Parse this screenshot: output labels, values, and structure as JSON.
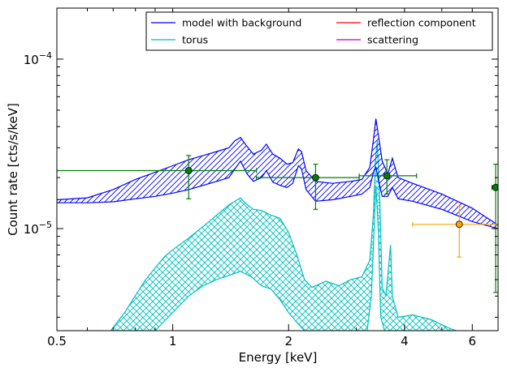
{
  "chart_data": {
    "type": "line",
    "xlabel": "Energy [keV]",
    "ylabel": "Count rate [cts/s/keV]",
    "xscale": "log",
    "yscale": "log",
    "xlim": [
      0.5,
      7.0
    ],
    "ylim": [
      2.5e-06,
      0.0002
    ],
    "x_ticks": [
      {
        "value": 0.5,
        "label": "0.5"
      },
      {
        "value": 1,
        "label": "1"
      },
      {
        "value": 2,
        "label": "2"
      },
      {
        "value": 4,
        "label": "4"
      },
      {
        "value": 6,
        "label": "6"
      }
    ],
    "y_ticks": [
      {
        "value": 1e-05,
        "mantissa": "10",
        "exponent": "−5"
      },
      {
        "value": 0.0001,
        "mantissa": "10",
        "exponent": "−4"
      }
    ],
    "legend": {
      "position": "top-right",
      "columns": 2,
      "entries": [
        {
          "label": "model with background",
          "color": "#0000ff"
        },
        {
          "label": "reflection component",
          "color": "#ff0000"
        },
        {
          "label": "torus",
          "color": "#00bfbf"
        },
        {
          "label": "scattering",
          "color": "#bf00bf"
        }
      ]
    },
    "model_band": {
      "color": "#0000ff",
      "hatch": "diagonal",
      "upper": [
        [
          0.5,
          1.48e-05
        ],
        [
          0.6,
          1.52e-05
        ],
        [
          0.7,
          1.7e-05
        ],
        [
          0.8,
          1.95e-05
        ],
        [
          0.9,
          2.15e-05
        ],
        [
          1.0,
          2.35e-05
        ],
        [
          1.1,
          2.55e-05
        ],
        [
          1.2,
          2.7e-05
        ],
        [
          1.3,
          2.85e-05
        ],
        [
          1.4,
          3e-05
        ],
        [
          1.45,
          3.3e-05
        ],
        [
          1.5,
          3.45e-05
        ],
        [
          1.56,
          3.05e-05
        ],
        [
          1.62,
          2.75e-05
        ],
        [
          1.7,
          2.9e-05
        ],
        [
          1.75,
          3.15e-05
        ],
        [
          1.82,
          2.75e-05
        ],
        [
          1.9,
          2.6e-05
        ],
        [
          1.98,
          2.4e-05
        ],
        [
          2.05,
          2.45e-05
        ],
        [
          2.12,
          2.95e-05
        ],
        [
          2.16,
          2.85e-05
        ],
        [
          2.22,
          2.2e-05
        ],
        [
          2.35,
          1.9e-05
        ],
        [
          2.6,
          1.85e-05
        ],
        [
          2.9,
          1.9e-05
        ],
        [
          3.1,
          1.95e-05
        ],
        [
          3.25,
          2.3e-05
        ],
        [
          3.33,
          3.5e-05
        ],
        [
          3.37,
          4.45e-05
        ],
        [
          3.42,
          3.6e-05
        ],
        [
          3.5,
          2.5e-05
        ],
        [
          3.62,
          2.1e-05
        ],
        [
          3.72,
          2.6e-05
        ],
        [
          3.85,
          2e-05
        ],
        [
          4.2,
          1.85e-05
        ],
        [
          5.0,
          1.6e-05
        ],
        [
          6.0,
          1.32e-05
        ],
        [
          7.0,
          1.05e-05
        ]
      ],
      "lower": [
        [
          0.5,
          1.42e-05
        ],
        [
          0.6,
          1.42e-05
        ],
        [
          0.7,
          1.44e-05
        ],
        [
          0.8,
          1.5e-05
        ],
        [
          0.9,
          1.55e-05
        ],
        [
          1.0,
          1.62e-05
        ],
        [
          1.1,
          1.7e-05
        ],
        [
          1.2,
          1.8e-05
        ],
        [
          1.3,
          1.9e-05
        ],
        [
          1.4,
          2e-05
        ],
        [
          1.45,
          2.25e-05
        ],
        [
          1.5,
          2.5e-05
        ],
        [
          1.56,
          2.1e-05
        ],
        [
          1.62,
          1.9e-05
        ],
        [
          1.7,
          2e-05
        ],
        [
          1.75,
          2.2e-05
        ],
        [
          1.82,
          1.88e-05
        ],
        [
          1.9,
          1.8e-05
        ],
        [
          1.98,
          1.75e-05
        ],
        [
          2.05,
          1.85e-05
        ],
        [
          2.12,
          2.35e-05
        ],
        [
          2.16,
          2.25e-05
        ],
        [
          2.22,
          1.7e-05
        ],
        [
          2.35,
          1.45e-05
        ],
        [
          2.6,
          1.48e-05
        ],
        [
          2.9,
          1.55e-05
        ],
        [
          3.1,
          1.6e-05
        ],
        [
          3.25,
          1.75e-05
        ],
        [
          3.33,
          2.2e-05
        ],
        [
          3.37,
          2.3e-05
        ],
        [
          3.42,
          1.95e-05
        ],
        [
          3.5,
          1.55e-05
        ],
        [
          3.62,
          1.55e-05
        ],
        [
          3.72,
          1.75e-05
        ],
        [
          3.85,
          1.5e-05
        ],
        [
          4.2,
          1.45e-05
        ],
        [
          5.0,
          1.3e-05
        ],
        [
          6.0,
          1.1e-05
        ],
        [
          7.0,
          1e-05
        ]
      ]
    },
    "torus_band": {
      "color": "#00bfbf",
      "hatch": "cross",
      "upper": [
        [
          0.69,
          2.5e-06
        ],
        [
          0.75,
          3.2e-06
        ],
        [
          0.85,
          5e-06
        ],
        [
          0.95,
          6.8e-06
        ],
        [
          1.0,
          7.5e-06
        ],
        [
          1.1,
          8.8e-06
        ],
        [
          1.2,
          1.03e-05
        ],
        [
          1.3,
          1.2e-05
        ],
        [
          1.4,
          1.38e-05
        ],
        [
          1.45,
          1.45e-05
        ],
        [
          1.5,
          1.52e-05
        ],
        [
          1.55,
          1.4e-05
        ],
        [
          1.62,
          1.3e-05
        ],
        [
          1.7,
          1.28e-05
        ],
        [
          1.8,
          1.2e-05
        ],
        [
          1.9,
          1.15e-05
        ],
        [
          2.0,
          9.5e-06
        ],
        [
          2.1,
          7e-06
        ],
        [
          2.2,
          5e-06
        ],
        [
          2.3,
          4.5e-06
        ],
        [
          2.5,
          4.9e-06
        ],
        [
          2.7,
          4.6e-06
        ],
        [
          2.9,
          5e-06
        ],
        [
          3.1,
          5.2e-06
        ],
        [
          3.25,
          6.5e-06
        ],
        [
          3.32,
          1.2e-05
        ],
        [
          3.36,
          2.5e-05
        ],
        [
          3.4,
          3.3e-05
        ],
        [
          3.45,
          1.5e-05
        ],
        [
          3.5,
          4.5e-06
        ],
        [
          3.58,
          4e-06
        ],
        [
          3.68,
          8e-06
        ],
        [
          3.72,
          4e-06
        ],
        [
          3.85,
          3e-06
        ],
        [
          4.2,
          3.1e-06
        ],
        [
          4.7,
          2.9e-06
        ],
        [
          5.2,
          2.6e-06
        ],
        [
          5.45,
          2.5e-06
        ]
      ],
      "lower": [
        [
          0.69,
          2.5e-06
        ],
        [
          0.9,
          2.5e-06
        ],
        [
          1.0,
          3.2e-06
        ],
        [
          1.1,
          4e-06
        ],
        [
          1.2,
          4.6e-06
        ],
        [
          1.3,
          5e-06
        ],
        [
          1.4,
          5.3e-06
        ],
        [
          1.5,
          5.6e-06
        ],
        [
          1.6,
          5.2e-06
        ],
        [
          1.7,
          4.6e-06
        ],
        [
          1.8,
          4.4e-06
        ],
        [
          1.9,
          3.8e-06
        ],
        [
          2.0,
          3.2e-06
        ],
        [
          2.1,
          2.8e-06
        ],
        [
          2.2,
          2.5e-06
        ],
        [
          3.2,
          2.5e-06
        ],
        [
          3.28,
          4e-06
        ],
        [
          3.33,
          9e-06
        ],
        [
          3.37,
          1.8e-05
        ],
        [
          3.42,
          1e-05
        ],
        [
          3.47,
          3e-06
        ],
        [
          3.55,
          2.5e-06
        ],
        [
          5.45,
          2.5e-06
        ]
      ]
    },
    "data_points": [
      {
        "x": 1.1,
        "y": 2.2e-05,
        "xerr": [
          0.5,
          1.65
        ],
        "yerr": [
          1.5e-05,
          2.7e-05
        ],
        "color": "#008000"
      },
      {
        "x": 2.35,
        "y": 2e-05,
        "xerr": [
          1.65,
          3.05
        ],
        "yerr": [
          1.3e-05,
          2.4e-05
        ],
        "color": "#008000"
      },
      {
        "x": 3.6,
        "y": 2.05e-05,
        "xerr": [
          3.05,
          4.3
        ],
        "yerr": [
          1.6e-05,
          2.55e-05
        ],
        "color": "#008000"
      },
      {
        "x": 6.9,
        "y": 1.75e-05,
        "xerr": [
          6.75,
          7.0
        ],
        "yerr": [
          4.2e-06,
          2.4e-05
        ],
        "color": "#008000"
      },
      {
        "x": 5.55,
        "y": 1.06e-05,
        "xerr": [
          4.2,
          7.0
        ],
        "yerr": [
          6.8e-06,
          1.35e-05
        ],
        "color": "#ffa500"
      }
    ]
  }
}
